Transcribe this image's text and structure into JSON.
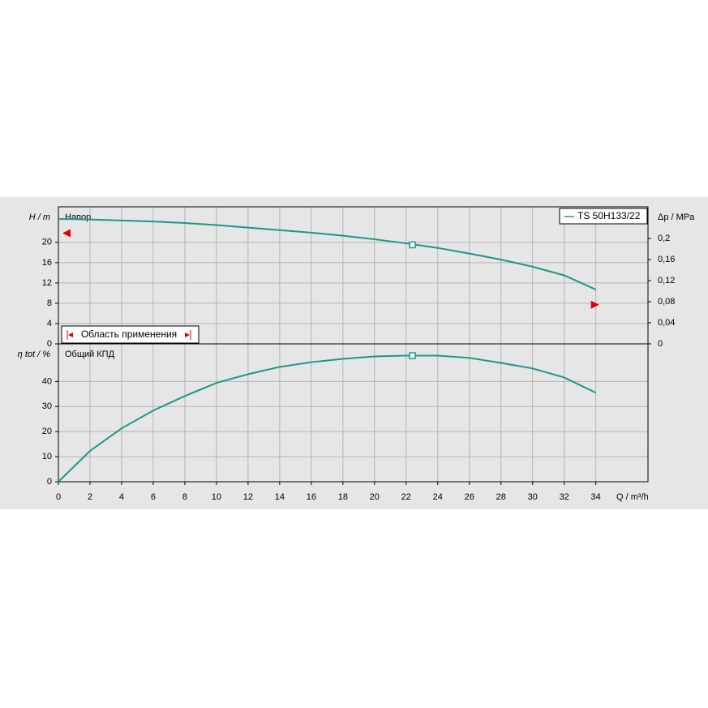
{
  "chart_data": [
    {
      "type": "line",
      "ylabel": "H / m",
      "y2label": "Δp / MPa",
      "annotation": "Напор",
      "range_label": "Область применения",
      "xlim": [
        0,
        37.3
      ],
      "ylim": [
        0,
        27
      ],
      "yticks": [
        0,
        4,
        8,
        12,
        16,
        20
      ],
      "y2lim": [
        0,
        0.26
      ],
      "y2ticks": [
        0,
        {
          "value": 0.04,
          "label": "0,04"
        },
        {
          "value": 0.08,
          "label": "0,08"
        },
        {
          "value": 0.12,
          "label": "0,12"
        },
        {
          "value": 0.16,
          "label": "0,16"
        },
        {
          "value": 0.2,
          "label": "0,2"
        }
      ],
      "grid": true,
      "legend": "upper right",
      "x": [
        0,
        2,
        4,
        6,
        8,
        10,
        12,
        14,
        16,
        18,
        20,
        22,
        24,
        26,
        28,
        30,
        32,
        34
      ],
      "series": [
        {
          "name": "TS 50H133/22",
          "color": "#1a9986",
          "values": [
            24.6,
            24.5,
            24.3,
            24.1,
            23.8,
            23.4,
            22.9,
            22.4,
            21.9,
            21.3,
            20.6,
            19.8,
            18.9,
            17.8,
            16.6,
            15.2,
            13.5,
            10.7
          ]
        }
      ],
      "duty_point": {
        "x": 22.4,
        "y": 19.5
      },
      "range_markers": [
        {
          "x": 0,
          "y": 21.8
        },
        {
          "x": 34,
          "y": 7.7
        }
      ]
    },
    {
      "type": "line",
      "ylabel": "η tot / %",
      "xlabel": "Q / m³/h",
      "annotation": "Общий КПД",
      "xlim": [
        0,
        37.3
      ],
      "ylim": [
        0,
        55
      ],
      "yticks": [
        0,
        10,
        20,
        30,
        40
      ],
      "xticks": [
        0,
        2,
        4,
        6,
        8,
        10,
        12,
        14,
        16,
        18,
        20,
        22,
        24,
        26,
        28,
        30,
        32,
        34
      ],
      "grid": true,
      "x": [
        0,
        2,
        4,
        6,
        8,
        10,
        12,
        14,
        16,
        18,
        20,
        22,
        24,
        26,
        28,
        30,
        32,
        34
      ],
      "series": [
        {
          "color": "#1a9986",
          "values": [
            0,
            12.3,
            21.3,
            28.4,
            34.2,
            39.4,
            42.9,
            45.8,
            47.7,
            49,
            50,
            50.3,
            50.3,
            49.4,
            47.4,
            45.2,
            41.6,
            35.5
          ]
        }
      ],
      "duty_point": {
        "x": 22.4,
        "y": 50.3
      }
    }
  ]
}
